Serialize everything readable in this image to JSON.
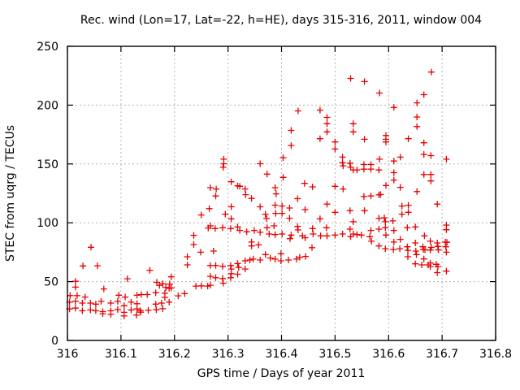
{
  "chart_data": {
    "type": "scatter",
    "title": "Rec. wind (Lon=17, Lat=-22, h=HE), days 315-316, 2011, window 004",
    "xlabel": "GPS time / Days of year 2011",
    "ylabel": "STEC from uqrg / TECUs",
    "xlim": [
      316,
      316.8
    ],
    "ylim": [
      0,
      250
    ],
    "xticks": {
      "values": [
        316,
        316.1,
        316.2,
        316.3,
        316.4,
        316.5,
        316.6,
        316.7,
        316.8
      ],
      "labels": [
        "316",
        "316.1",
        "316.2",
        "316.3",
        "316.4",
        "316.5",
        "316.6",
        "316.7",
        "316.8"
      ]
    },
    "yticks": {
      "values": [
        0,
        50,
        100,
        150,
        200,
        250
      ],
      "labels": [
        "0",
        "50",
        "100",
        "150",
        "200",
        "250"
      ]
    },
    "grid": true,
    "legend": "none",
    "marker": {
      "shape": "plus",
      "size": 9,
      "color": "#e60000"
    },
    "frame_color": "#000000",
    "grid_color": "#b3b3b3",
    "points": [
      [
        316.265,
        112.0
      ],
      [
        316.25,
        106.6
      ],
      [
        316.263,
        95.6
      ],
      [
        316.236,
        89.3
      ],
      [
        316.044,
        79.2
      ],
      [
        316.236,
        81.5
      ],
      [
        316.249,
        75.0
      ],
      [
        316.224,
        71.1
      ],
      [
        316.029,
        63.3
      ],
      [
        316.056,
        63.5
      ],
      [
        316.224,
        64.2
      ],
      [
        316.154,
        59.7
      ],
      [
        316.015,
        50.3
      ],
      [
        316.112,
        52.4
      ],
      [
        316.167,
        49.4
      ],
      [
        316.178,
        48.2
      ],
      [
        316.194,
        54.1
      ],
      [
        316.191,
        47.9
      ],
      [
        316.194,
        44.6
      ],
      [
        316.015,
        45.3
      ],
      [
        316.068,
        43.8
      ],
      [
        316.005,
        38.1
      ],
      [
        316.018,
        38.1
      ],
      [
        316.033,
        36.9
      ],
      [
        316.096,
        38.5
      ],
      [
        316.108,
        36.9
      ],
      [
        316.13,
        38.4
      ],
      [
        316.004,
        32.5
      ],
      [
        316.015,
        33.2
      ],
      [
        316.028,
        31.8
      ],
      [
        316.043,
        31.8
      ],
      [
        316.053,
        30.9
      ],
      [
        316.063,
        33.2
      ],
      [
        316.081,
        31.8
      ],
      [
        316.094,
        33.2
      ],
      [
        316.106,
        29.5
      ],
      [
        316.119,
        32.5
      ],
      [
        316.13,
        31.2
      ],
      [
        316.004,
        26.8
      ],
      [
        316.015,
        27.5
      ],
      [
        316.028,
        25.2
      ],
      [
        316.043,
        25.9
      ],
      [
        316.053,
        25.2
      ],
      [
        316.066,
        24.5
      ],
      [
        316.081,
        25.2
      ],
      [
        316.094,
        26.3
      ],
      [
        316.106,
        23.9
      ],
      [
        316.119,
        25.9
      ],
      [
        316.13,
        26.8
      ],
      [
        316.066,
        22.7
      ],
      [
        316.081,
        22.2
      ],
      [
        316.106,
        20.8
      ],
      [
        316.129,
        21.5
      ],
      [
        316.172,
        46.8
      ],
      [
        316.184,
        45.0
      ],
      [
        316.19,
        44.3
      ],
      [
        316.24,
        46.2
      ],
      [
        316.25,
        46.4
      ],
      [
        316.262,
        46.2
      ],
      [
        316.138,
        39.0
      ],
      [
        316.149,
        39.0
      ],
      [
        316.165,
        40.6
      ],
      [
        316.182,
        40.1
      ],
      [
        316.182,
        36.6
      ],
      [
        316.207,
        37.9
      ],
      [
        316.219,
        39.8
      ],
      [
        316.165,
        30.9
      ],
      [
        316.176,
        31.8
      ],
      [
        316.19,
        32.5
      ],
      [
        316.136,
        25.4
      ],
      [
        316.137,
        24.0
      ],
      [
        316.151,
        25.6
      ],
      [
        316.166,
        26.1
      ],
      [
        316.178,
        27.0
      ],
      [
        316.277,
        122.8
      ],
      [
        316.333,
        123.9
      ],
      [
        316.344,
        120.7
      ],
      [
        316.39,
        124.6
      ],
      [
        316.43,
        120.5
      ],
      [
        316.306,
        113.6
      ],
      [
        316.36,
        113.6
      ],
      [
        316.388,
        115.0
      ],
      [
        316.401,
        114.2
      ],
      [
        316.389,
        108.0
      ],
      [
        316.401,
        108.0
      ],
      [
        316.415,
        112.6
      ],
      [
        316.444,
        111.2
      ],
      [
        316.485,
        115.9
      ],
      [
        316.5,
        108.9
      ],
      [
        316.528,
        110.3
      ],
      [
        316.295,
        107.3
      ],
      [
        316.306,
        103.4
      ],
      [
        316.37,
        107.3
      ],
      [
        316.372,
        103.6
      ],
      [
        316.415,
        103.9
      ],
      [
        316.472,
        103.4
      ],
      [
        316.267,
        97.4
      ],
      [
        316.276,
        95.1
      ],
      [
        316.29,
        95.8
      ],
      [
        316.305,
        95.1
      ],
      [
        316.318,
        96.5
      ],
      [
        316.322,
        93.5
      ],
      [
        316.335,
        92.3
      ],
      [
        316.349,
        93.5
      ],
      [
        316.36,
        91.9
      ],
      [
        316.373,
        95.8
      ],
      [
        316.377,
        90.5
      ],
      [
        316.386,
        97.4
      ],
      [
        316.388,
        90.0
      ],
      [
        316.401,
        90.5
      ],
      [
        316.416,
        86.5
      ],
      [
        316.418,
        89.6
      ],
      [
        316.43,
        96.9
      ],
      [
        316.431,
        93.9
      ],
      [
        316.439,
        88.9
      ],
      [
        316.444,
        87.3
      ],
      [
        316.458,
        95.1
      ],
      [
        316.459,
        90.5
      ],
      [
        316.473,
        88.9
      ],
      [
        316.484,
        95.8
      ],
      [
        316.485,
        88.9
      ],
      [
        316.5,
        89.6
      ],
      [
        316.514,
        90.5
      ],
      [
        316.528,
        94.6
      ],
      [
        316.529,
        88.2
      ],
      [
        316.344,
        83.6
      ],
      [
        316.344,
        80.3
      ],
      [
        316.357,
        81.2
      ],
      [
        316.457,
        78.9
      ],
      [
        316.273,
        76.0
      ],
      [
        316.37,
        73.0
      ],
      [
        316.379,
        70.0
      ],
      [
        316.388,
        69.1
      ],
      [
        316.399,
        73.7
      ],
      [
        316.399,
        67.7
      ],
      [
        316.413,
        68.4
      ],
      [
        316.428,
        69.1
      ],
      [
        316.434,
        70.7
      ],
      [
        316.445,
        71.4
      ],
      [
        316.332,
        67.7
      ],
      [
        316.341,
        68.4
      ],
      [
        316.347,
        69.1
      ],
      [
        316.36,
        68.4
      ],
      [
        316.318,
        65.4
      ],
      [
        316.32,
        62.1
      ],
      [
        316.332,
        60.7
      ],
      [
        316.305,
        63.7
      ],
      [
        316.306,
        60.7
      ],
      [
        316.29,
        63.0
      ],
      [
        316.277,
        63.7
      ],
      [
        316.267,
        63.7
      ],
      [
        316.267,
        54.5
      ],
      [
        316.267,
        46.9
      ],
      [
        316.277,
        53.3
      ],
      [
        316.29,
        52.6
      ],
      [
        316.291,
        48.7
      ],
      [
        316.305,
        53.3
      ],
      [
        316.306,
        56.8
      ],
      [
        316.318,
        56.3
      ],
      [
        316.554,
        122.3
      ],
      [
        316.567,
        122.8
      ],
      [
        316.582,
        123.7
      ],
      [
        316.585,
        124.0
      ],
      [
        316.691,
        115.9
      ],
      [
        316.555,
        110.3
      ],
      [
        316.625,
        114.2
      ],
      [
        316.637,
        114.9
      ],
      [
        316.625,
        107.3
      ],
      [
        316.637,
        108.9
      ],
      [
        316.582,
        103.9
      ],
      [
        316.592,
        104.3
      ],
      [
        316.534,
        100.9
      ],
      [
        316.594,
        100.9
      ],
      [
        316.608,
        101.6
      ],
      [
        316.534,
        90.5
      ],
      [
        316.541,
        90.0
      ],
      [
        316.549,
        89.6
      ],
      [
        316.567,
        93.5
      ],
      [
        316.565,
        88.2
      ],
      [
        316.582,
        94.6
      ],
      [
        316.594,
        95.8
      ],
      [
        316.595,
        89.6
      ],
      [
        316.61,
        93.5
      ],
      [
        316.635,
        95.8
      ],
      [
        316.65,
        96.5
      ],
      [
        316.667,
        88.9
      ],
      [
        316.708,
        98.1
      ],
      [
        316.708,
        94.1
      ],
      [
        316.568,
        84.3
      ],
      [
        316.582,
        80.3
      ],
      [
        316.594,
        78.0
      ],
      [
        316.61,
        83.6
      ],
      [
        316.609,
        77.3
      ],
      [
        316.622,
        85.9
      ],
      [
        316.621,
        78.0
      ],
      [
        316.635,
        79.6
      ],
      [
        316.636,
        76.6
      ],
      [
        316.636,
        71.1
      ],
      [
        316.65,
        82.9
      ],
      [
        316.651,
        76.0
      ],
      [
        316.652,
        73.0
      ],
      [
        316.664,
        79.6
      ],
      [
        316.665,
        77.3
      ],
      [
        316.668,
        77.0
      ],
      [
        316.666,
        69.3
      ],
      [
        316.678,
        84.3
      ],
      [
        316.68,
        79.1
      ],
      [
        316.678,
        76.8
      ],
      [
        316.691,
        82.9
      ],
      [
        316.692,
        79.9
      ],
      [
        316.693,
        76.9
      ],
      [
        316.706,
        83.6
      ],
      [
        316.709,
        83.4
      ],
      [
        316.707,
        79.6
      ],
      [
        316.708,
        75.0
      ],
      [
        316.65,
        65.1
      ],
      [
        316.662,
        64.2
      ],
      [
        316.674,
        64.2
      ],
      [
        316.678,
        65.8
      ],
      [
        316.678,
        62.8
      ],
      [
        316.689,
        64.7
      ],
      [
        316.692,
        62.8
      ],
      [
        316.691,
        57.7
      ],
      [
        316.708,
        58.9
      ],
      [
        316.529,
        222.7
      ],
      [
        316.431,
        195.1
      ],
      [
        316.472,
        195.8
      ],
      [
        316.485,
        189.6
      ],
      [
        316.485,
        184.2
      ],
      [
        316.418,
        178.5
      ],
      [
        316.485,
        177.3
      ],
      [
        316.472,
        171.5
      ],
      [
        316.418,
        165.7
      ],
      [
        316.5,
        168.7
      ],
      [
        316.5,
        162.7
      ],
      [
        316.403,
        155.3
      ],
      [
        316.514,
        155.8
      ],
      [
        316.514,
        151.1
      ],
      [
        316.515,
        148.4
      ],
      [
        316.528,
        150.7
      ],
      [
        316.529,
        147.2
      ],
      [
        316.292,
        154.1
      ],
      [
        316.292,
        150.2
      ],
      [
        316.291,
        147.2
      ],
      [
        316.36,
        150.2
      ],
      [
        316.373,
        141.4
      ],
      [
        316.403,
        138.6
      ],
      [
        316.306,
        134.9
      ],
      [
        316.318,
        131.4
      ],
      [
        316.322,
        131.0
      ],
      [
        316.332,
        128.7
      ],
      [
        316.388,
        129.8
      ],
      [
        316.443,
        133.5
      ],
      [
        316.458,
        130.5
      ],
      [
        316.5,
        131.0
      ],
      [
        316.515,
        128.7
      ],
      [
        316.267,
        129.8
      ],
      [
        316.278,
        128.7
      ],
      [
        316.68,
        228.1
      ],
      [
        316.555,
        220.0
      ],
      [
        316.583,
        210.3
      ],
      [
        316.666,
        208.9
      ],
      [
        316.61,
        198.0
      ],
      [
        316.653,
        201.9
      ],
      [
        316.653,
        189.9
      ],
      [
        316.653,
        181.8
      ],
      [
        316.534,
        184.2
      ],
      [
        316.534,
        177.3
      ],
      [
        316.555,
        171.0
      ],
      [
        316.595,
        174.2
      ],
      [
        316.595,
        171.0
      ],
      [
        316.595,
        168.7
      ],
      [
        316.637,
        171.5
      ],
      [
        316.666,
        168.0
      ],
      [
        316.666,
        158.1
      ],
      [
        316.679,
        157.1
      ],
      [
        316.708,
        154.1
      ],
      [
        316.622,
        155.8
      ],
      [
        316.583,
        154.1
      ],
      [
        316.61,
        152.5
      ],
      [
        316.554,
        149.5
      ],
      [
        316.567,
        149.5
      ],
      [
        316.554,
        145.6
      ],
      [
        316.567,
        145.6
      ],
      [
        316.541,
        144.9
      ],
      [
        316.534,
        144.9
      ],
      [
        316.582,
        144.9
      ],
      [
        316.61,
        142.6
      ],
      [
        316.61,
        136.3
      ],
      [
        316.666,
        141.0
      ],
      [
        316.679,
        141.0
      ],
      [
        316.679,
        135.6
      ],
      [
        316.595,
        131.7
      ],
      [
        316.622,
        130.1
      ],
      [
        316.653,
        126.5
      ]
    ]
  }
}
